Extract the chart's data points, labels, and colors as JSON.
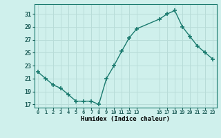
{
  "x": [
    0,
    1,
    2,
    3,
    4,
    5,
    6,
    7,
    8,
    9,
    10,
    11,
    12,
    13,
    16,
    17,
    18,
    19,
    20,
    21,
    22,
    23
  ],
  "y": [
    22.0,
    21.0,
    20.0,
    19.5,
    18.5,
    17.5,
    17.5,
    17.5,
    17.0,
    21.0,
    23.0,
    25.2,
    27.3,
    28.7,
    30.2,
    31.0,
    31.5,
    29.0,
    27.5,
    26.0,
    25.0,
    24.0
  ],
  "xlabel": "Humidex (Indice chaleur)",
  "xtick_positions": [
    0,
    1,
    2,
    3,
    4,
    5,
    6,
    7,
    8,
    9,
    10,
    11,
    12,
    13,
    16,
    17,
    18,
    19,
    20,
    21,
    22,
    23
  ],
  "xtick_labels": [
    "0",
    "1",
    "2",
    "3",
    "4",
    "5",
    "6",
    "7",
    "8",
    "9",
    "10",
    "11",
    "12",
    "13",
    "16",
    "17",
    "18",
    "19",
    "20",
    "21",
    "22",
    "23"
  ],
  "ytick_positions": [
    17,
    19,
    21,
    23,
    25,
    27,
    29,
    31
  ],
  "ytick_labels": [
    "17",
    "19",
    "21",
    "23",
    "25",
    "27",
    "29",
    "31"
  ],
  "ylim": [
    16.5,
    32.5
  ],
  "xlim": [
    -0.5,
    23.5
  ],
  "line_color": "#1a7a6e",
  "bg_color": "#cff0ec",
  "grid_color": "#b8dcd8",
  "marker": "+",
  "marker_size": 5,
  "marker_lw": 1.2,
  "line_width": 1.0
}
